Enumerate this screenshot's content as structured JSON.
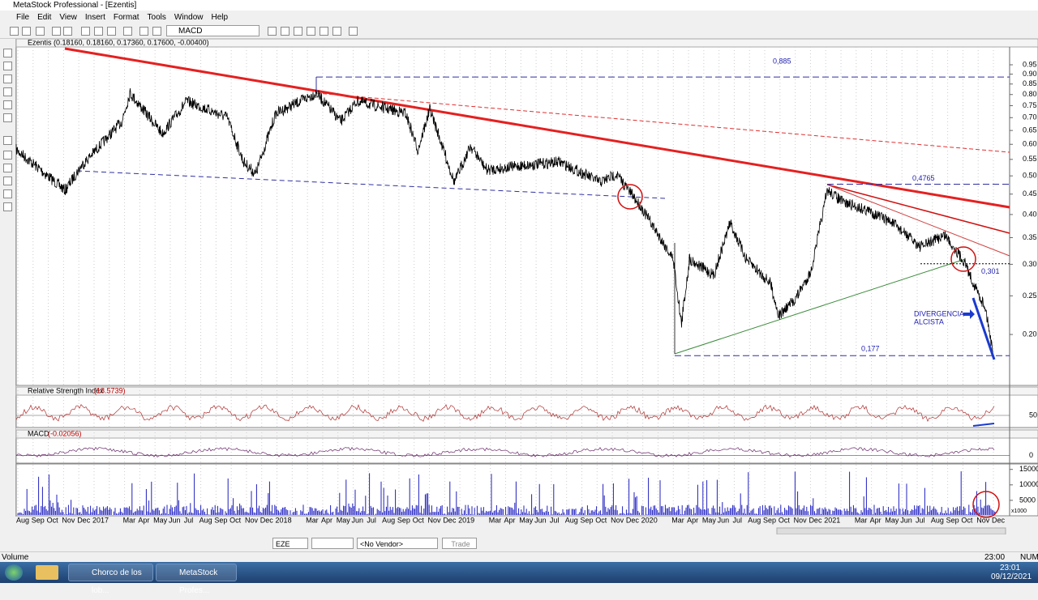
{
  "window": {
    "title": "MetaStock Professional - [Ezentis]"
  },
  "menu": [
    "File",
    "Edit",
    "View",
    "Insert",
    "Format",
    "Tools",
    "Window",
    "Help"
  ],
  "toolbar": {
    "indicator": "MACD"
  },
  "chart_data": {
    "type": "line",
    "header": "Ezentis (0.18160, 0.18160, 0.17360, 0.17600, -0.00400)",
    "log_scale": true,
    "ylim": [
      0.149,
      1.053
    ],
    "yticks": [
      0.95,
      {
        "value": 0.9,
        "label": "0.90"
      },
      0.85,
      {
        "value": 0.8,
        "label": "0.80"
      },
      0.75,
      {
        "value": 0.7,
        "label": "0.70"
      },
      0.65,
      {
        "value": 0.6,
        "label": "0.60"
      },
      0.55,
      {
        "value": 0.5,
        "label": "0.50"
      },
      0.45,
      {
        "value": 0.4,
        "label": "0.40"
      },
      0.35,
      {
        "value": 0.3,
        "label": "0.30"
      },
      0.25,
      {
        "value": 0.2,
        "label": "0.20"
      }
    ],
    "annotations": [
      {
        "value": 0.885,
        "label": "0,885"
      },
      {
        "value": 0.4765,
        "label": "0,4765"
      },
      {
        "value": 0.301,
        "label": "0,301"
      },
      {
        "value": 0.177,
        "label": "0,177"
      }
    ],
    "note": [
      "DIVERGENCIA",
      "ALCISTA"
    ],
    "categories": [
      "Aug",
      "Sep",
      "Oct",
      "Nov",
      "Dec",
      "2017",
      null,
      "Mar",
      "Apr",
      "May",
      "Jun",
      "Jul",
      "Aug",
      "Sep",
      "Oct",
      "Nov",
      "Dec",
      "2018",
      null,
      "Mar",
      "Apr",
      "May",
      "Jun",
      "Jul",
      "Aug",
      "Sep",
      "Oct",
      "Nov",
      "Dec",
      "2019",
      null,
      "Mar",
      "Apr",
      "May",
      "Jun",
      "Jul",
      "Aug",
      "Sep",
      "Oct",
      "Nov",
      "Dec",
      "2020",
      null,
      "Mar",
      "Apr",
      "May",
      "Jun",
      "Jul",
      "Aug",
      "Sep",
      "Oct",
      "Nov",
      "Dec",
      "2021",
      null,
      "Mar",
      "Apr",
      "May",
      "Jun",
      "Jul",
      "Aug",
      "Sep",
      "Oct",
      "Nov",
      "Dec"
    ]
  },
  "rsi": {
    "name": "Relative Strength Index",
    "reading": "(18.5739)",
    "ylim": [
      20,
      100
    ],
    "yticks": [
      50
    ]
  },
  "macd": {
    "name": "MACD",
    "reading": "(-0.02056)",
    "ylim": [
      -0.03,
      0.07
    ],
    "yticks": [
      0
    ]
  },
  "volume": {
    "ylim": [
      0,
      16500
    ],
    "yticks": [
      15000,
      10000,
      5000
    ],
    "multiplier": "x1000"
  },
  "bottom_toolbar": {
    "symbol": "EZE",
    "vendor": "<No Vendor>",
    "button": "Trade"
  },
  "status": {
    "left": "Volume",
    "time": "23:00",
    "mode": "NUM"
  },
  "taskbar": {
    "items": [
      "Chorco de los lob...",
      "MetaStock Profes..."
    ],
    "time": "23:01",
    "date": "09/12/2021"
  }
}
